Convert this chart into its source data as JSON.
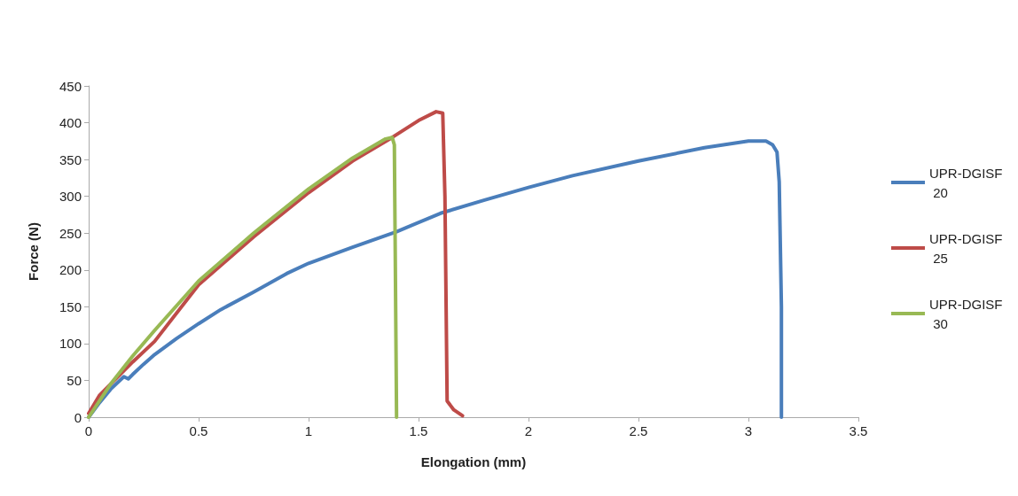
{
  "chart_data": {
    "type": "line",
    "xlabel": "Elongation (mm)",
    "ylabel": "Force (N)",
    "xlim": [
      0,
      3.5
    ],
    "xticks": [
      0,
      0.5,
      1,
      1.5,
      2,
      2.5,
      3,
      3.5
    ],
    "ylim": [
      0,
      450
    ],
    "yticks": [
      0,
      50,
      100,
      150,
      200,
      250,
      300,
      350,
      400,
      450
    ],
    "grid": false,
    "legend": "right",
    "marker": "none",
    "line_style": "solid",
    "series": [
      {
        "name": "UPR-DGISF 20",
        "color": "#4a7ebb",
        "x": [
          0,
          0.05,
          0.1,
          0.16,
          0.18,
          0.2,
          0.25,
          0.3,
          0.4,
          0.5,
          0.6,
          0.75,
          0.9,
          1.0,
          1.2,
          1.4,
          1.6,
          1.8,
          2.0,
          2.2,
          2.5,
          2.8,
          3.0,
          3.08,
          3.11,
          3.13,
          3.14,
          3.15,
          3.15
        ],
        "values": [
          0,
          20,
          38,
          55,
          52,
          58,
          72,
          85,
          107,
          127,
          146,
          170,
          195,
          209,
          231,
          252,
          277,
          295,
          312,
          328,
          348,
          366,
          375,
          375,
          370,
          360,
          320,
          150,
          0
        ]
      },
      {
        "name": "UPR-DGISF 25",
        "color": "#be4b48",
        "x": [
          0,
          0.05,
          0.1,
          0.2,
          0.3,
          0.5,
          0.75,
          1.0,
          1.2,
          1.38,
          1.5,
          1.58,
          1.61,
          1.62,
          1.63,
          1.66,
          1.7
        ],
        "values": [
          5,
          30,
          45,
          75,
          103,
          180,
          245,
          305,
          348,
          380,
          403,
          415,
          413,
          300,
          22,
          10,
          2
        ]
      },
      {
        "name": "UPR-DGISF 30",
        "color": "#98b954",
        "x": [
          0,
          0.1,
          0.2,
          0.3,
          0.5,
          0.75,
          1.0,
          1.2,
          1.35,
          1.38,
          1.39,
          1.4
        ],
        "values": [
          0,
          45,
          83,
          118,
          185,
          250,
          310,
          352,
          378,
          380,
          370,
          0
        ]
      }
    ]
  }
}
